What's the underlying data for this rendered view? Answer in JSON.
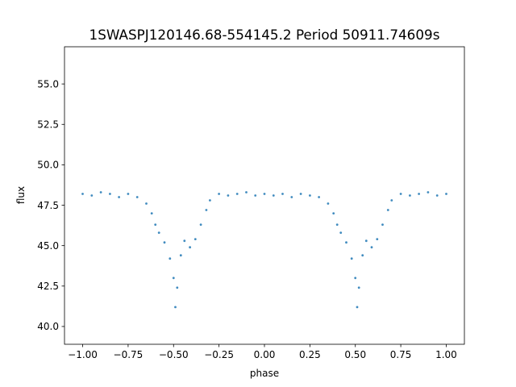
{
  "chart_data": {
    "type": "scatter",
    "title": "1SWASPJ120146.68-554145.2 Period 50911.74609s",
    "xlabel": "phase",
    "ylabel": "flux",
    "xlim": [
      -1.1,
      1.1
    ],
    "ylim": [
      38.9,
      57.3
    ],
    "x_ticks": [
      -1.0,
      -0.75,
      -0.5,
      -0.25,
      0.0,
      0.25,
      0.5,
      0.75,
      1.0
    ],
    "x_tick_labels": [
      "−1.00",
      "−0.75",
      "−0.50",
      "−0.25",
      "0.00",
      "0.25",
      "0.50",
      "0.75",
      "1.00"
    ],
    "y_ticks": [
      40.0,
      42.5,
      45.0,
      47.5,
      50.0,
      52.5,
      55.0
    ],
    "y_tick_labels": [
      "40.0",
      "42.5",
      "45.0",
      "47.5",
      "50.0",
      "52.5",
      "55.0"
    ],
    "grid": false,
    "marker_color": "#1f77b4",
    "series": [
      {
        "points": [
          [
            -1.0,
            48.2
          ],
          [
            -0.95,
            48.1
          ],
          [
            -0.9,
            48.3
          ],
          [
            -0.85,
            48.2
          ],
          [
            -0.8,
            48.0
          ],
          [
            -0.75,
            48.2
          ],
          [
            -0.7,
            48.0
          ],
          [
            -0.65,
            47.6
          ],
          [
            -0.62,
            47.0
          ],
          [
            -0.6,
            46.3
          ],
          [
            -0.58,
            45.8
          ],
          [
            -0.55,
            45.2
          ],
          [
            -0.52,
            44.2
          ],
          [
            -0.5,
            43.0
          ],
          [
            -0.49,
            41.2
          ],
          [
            -0.48,
            42.4
          ],
          [
            -0.46,
            44.4
          ],
          [
            -0.44,
            45.3
          ],
          [
            -0.41,
            44.9
          ],
          [
            -0.38,
            45.4
          ],
          [
            -0.35,
            46.3
          ],
          [
            -0.32,
            47.2
          ],
          [
            -0.3,
            47.8
          ],
          [
            -0.25,
            48.2
          ],
          [
            -0.2,
            48.1
          ],
          [
            -0.15,
            48.2
          ],
          [
            -0.1,
            48.3
          ],
          [
            -0.05,
            48.1
          ],
          [
            0.0,
            48.2
          ],
          [
            0.05,
            48.1
          ],
          [
            0.1,
            48.2
          ],
          [
            0.15,
            48.0
          ],
          [
            0.2,
            48.2
          ],
          [
            0.25,
            48.1
          ],
          [
            0.3,
            48.0
          ],
          [
            0.35,
            47.6
          ],
          [
            0.38,
            47.0
          ],
          [
            0.4,
            46.3
          ],
          [
            0.42,
            45.8
          ],
          [
            0.45,
            45.2
          ],
          [
            0.48,
            44.2
          ],
          [
            0.5,
            43.0
          ],
          [
            0.51,
            41.2
          ],
          [
            0.52,
            42.4
          ],
          [
            0.54,
            44.4
          ],
          [
            0.56,
            45.3
          ],
          [
            0.59,
            44.9
          ],
          [
            0.62,
            45.4
          ],
          [
            0.65,
            46.3
          ],
          [
            0.68,
            47.2
          ],
          [
            0.7,
            47.8
          ],
          [
            0.75,
            48.2
          ],
          [
            0.8,
            48.1
          ],
          [
            0.85,
            48.2
          ],
          [
            0.9,
            48.3
          ],
          [
            0.95,
            48.1
          ],
          [
            1.0,
            48.2
          ]
        ]
      }
    ]
  }
}
